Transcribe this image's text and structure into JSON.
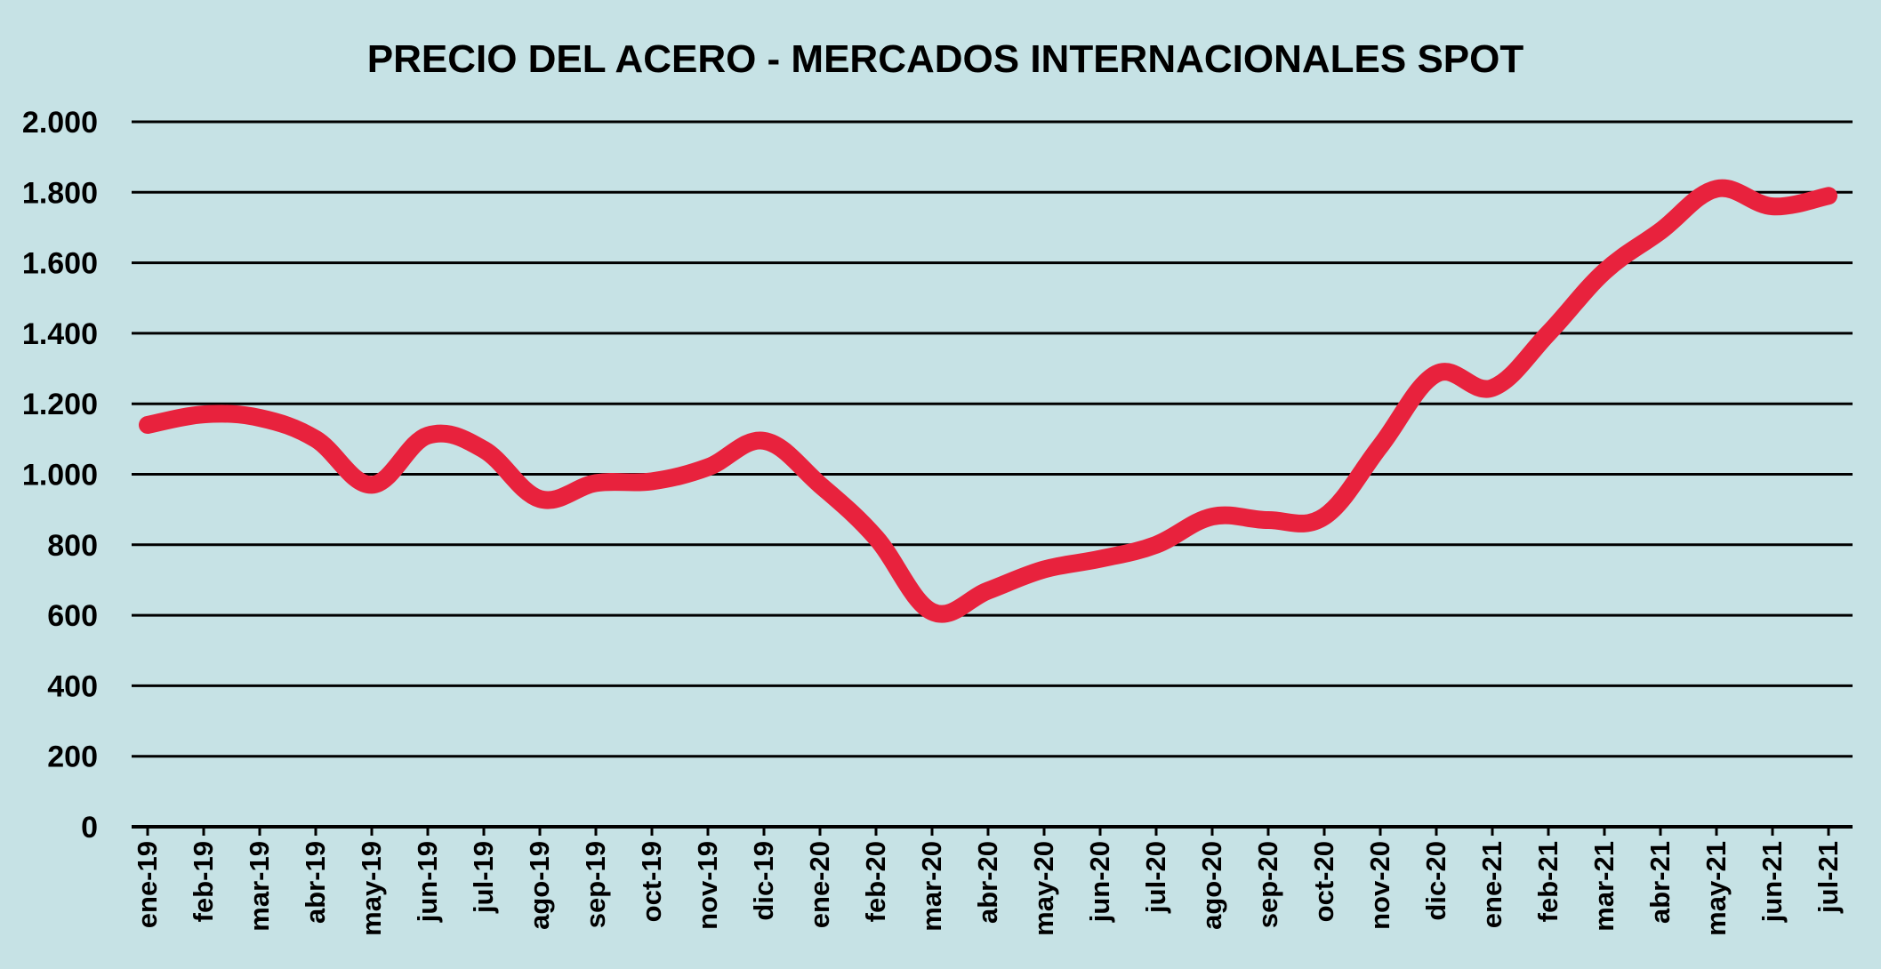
{
  "chart_data": {
    "type": "line",
    "title": "PRECIO DEL ACERO - MERCADOS INTERNACIONALES SPOT",
    "xlabel": "",
    "ylabel": "",
    "ylim": [
      0,
      2000
    ],
    "yticks": [
      0,
      200,
      400,
      600,
      800,
      1000,
      1200,
      1400,
      1600,
      1800,
      2000
    ],
    "ytick_labels": [
      "0",
      "200",
      "400",
      "600",
      "800",
      "1.000",
      "1.200",
      "1.400",
      "1.600",
      "1.800",
      "2.000"
    ],
    "grid": true,
    "legend": "none",
    "categories": [
      "ene-19",
      "feb-19",
      "mar-19",
      "abr-19",
      "may-19",
      "jun-19",
      "jul-19",
      "ago-19",
      "sep-19",
      "oct-19",
      "nov-19",
      "dic-19",
      "ene-20",
      "feb-20",
      "mar-20",
      "abr-20",
      "may-20",
      "jun-20",
      "jul-20",
      "ago-20",
      "sep-20",
      "oct-20",
      "nov-20",
      "dic-20",
      "ene-21",
      "feb-21",
      "mar-21",
      "abr-21",
      "may-21",
      "jun-21",
      "jul-21"
    ],
    "series": [
      {
        "values": [
          1140,
          1170,
          1160,
          1100,
          970,
          1110,
          1070,
          930,
          975,
          980,
          1020,
          1095,
          970,
          820,
          610,
          670,
          730,
          760,
          800,
          880,
          870,
          880,
          1080,
          1285,
          1245,
          1400,
          1575,
          1690,
          1810,
          1760,
          1790
        ],
        "color": "#e8223d"
      }
    ],
    "colors": {
      "background": "#c6e2e5",
      "gridline": "#000000",
      "line": "#e8223d",
      "text": "#000000"
    }
  }
}
